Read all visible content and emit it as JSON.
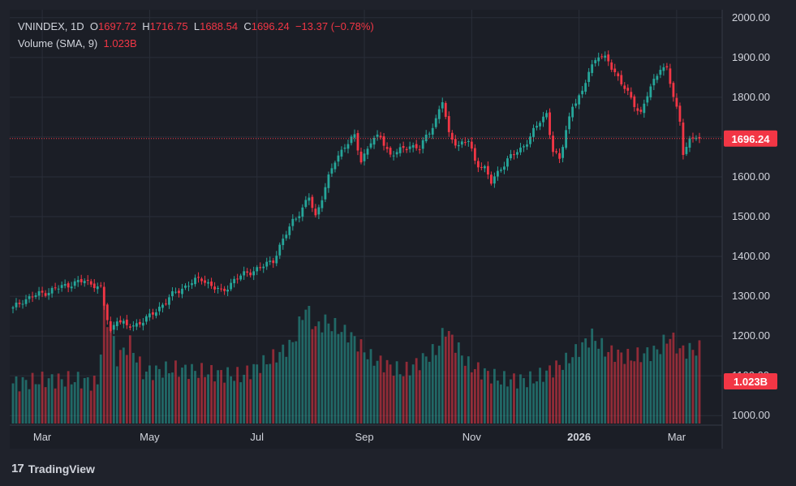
{
  "legend": {
    "symbol": "VNINDEX, 1D",
    "o_label": "O",
    "o_value": "1697.72",
    "h_label": "H",
    "h_value": "1716.75",
    "l_label": "L",
    "l_value": "1688.54",
    "c_label": "C",
    "c_value": "1696.24",
    "change": "−13.37 (−0.78%)",
    "vol_label": "Volume (SMA, 9)",
    "vol_value": "1.023B"
  },
  "brand": {
    "logo": "17",
    "name": "TradingView"
  },
  "colors": {
    "up": "#26a69a",
    "down": "#f23645",
    "background": "#1f222b",
    "grid": "#2a2e39",
    "text": "#d1d4dc"
  },
  "chart_data": {
    "type": "candlestick",
    "symbol": "VNINDEX",
    "interval": "1D",
    "y_axis": {
      "ticks": [
        1000,
        1100,
        1200,
        1300,
        1400,
        1500,
        1600,
        1700,
        1800,
        1900,
        2000
      ],
      "tick_labels": [
        "1000.00",
        "1100.00",
        "1200.00",
        "1300.00",
        "1400.00",
        "1500.00",
        "1600.00",
        "1700.00",
        "1800.00",
        "1900.00",
        "2000.00"
      ],
      "range": [
        980,
        2020
      ]
    },
    "x_axis": {
      "labels": [
        "Mar",
        "May",
        "Jul",
        "Sep",
        "Nov",
        "2026",
        "Mar"
      ],
      "bold_label": "2026"
    },
    "last_price": 1696.24,
    "last_price_label": "1696.24",
    "last_volume_label": "1.023B",
    "grid": true,
    "keypoints": [
      {
        "i": 0,
        "c": 1268
      },
      {
        "i": 3,
        "c": 1290
      },
      {
        "i": 8,
        "c": 1305
      },
      {
        "i": 13,
        "c": 1318
      },
      {
        "i": 18,
        "c": 1332
      },
      {
        "i": 22,
        "c": 1338
      },
      {
        "i": 25,
        "c": 1330
      },
      {
        "i": 27,
        "c": 1318
      },
      {
        "i": 28,
        "c": 1275
      },
      {
        "i": 30,
        "c": 1210
      },
      {
        "i": 32,
        "c": 1245
      },
      {
        "i": 35,
        "c": 1222
      },
      {
        "i": 38,
        "c": 1230
      },
      {
        "i": 42,
        "c": 1248
      },
      {
        "i": 46,
        "c": 1280
      },
      {
        "i": 50,
        "c": 1310
      },
      {
        "i": 54,
        "c": 1330
      },
      {
        "i": 58,
        "c": 1345
      },
      {
        "i": 62,
        "c": 1320
      },
      {
        "i": 64,
        "c": 1310
      },
      {
        "i": 68,
        "c": 1340
      },
      {
        "i": 72,
        "c": 1360
      },
      {
        "i": 76,
        "c": 1370
      },
      {
        "i": 80,
        "c": 1392
      },
      {
        "i": 83,
        "c": 1440
      },
      {
        "i": 86,
        "c": 1490
      },
      {
        "i": 89,
        "c": 1520
      },
      {
        "i": 91,
        "c": 1548
      },
      {
        "i": 93,
        "c": 1500
      },
      {
        "i": 96,
        "c": 1575
      },
      {
        "i": 99,
        "c": 1640
      },
      {
        "i": 102,
        "c": 1680
      },
      {
        "i": 105,
        "c": 1700
      },
      {
        "i": 107,
        "c": 1640
      },
      {
        "i": 110,
        "c": 1690
      },
      {
        "i": 113,
        "c": 1700
      },
      {
        "i": 116,
        "c": 1655
      },
      {
        "i": 119,
        "c": 1665
      },
      {
        "i": 122,
        "c": 1680
      },
      {
        "i": 125,
        "c": 1670
      },
      {
        "i": 127,
        "c": 1700
      },
      {
        "i": 130,
        "c": 1745
      },
      {
        "i": 132,
        "c": 1790
      },
      {
        "i": 134,
        "c": 1705
      },
      {
        "i": 137,
        "c": 1680
      },
      {
        "i": 140,
        "c": 1690
      },
      {
        "i": 142,
        "c": 1640
      },
      {
        "i": 145,
        "c": 1620
      },
      {
        "i": 147,
        "c": 1585
      },
      {
        "i": 150,
        "c": 1625
      },
      {
        "i": 153,
        "c": 1650
      },
      {
        "i": 156,
        "c": 1670
      },
      {
        "i": 159,
        "c": 1700
      },
      {
        "i": 162,
        "c": 1740
      },
      {
        "i": 164,
        "c": 1760
      },
      {
        "i": 166,
        "c": 1665
      },
      {
        "i": 168,
        "c": 1640
      },
      {
        "i": 170,
        "c": 1720
      },
      {
        "i": 172,
        "c": 1780
      },
      {
        "i": 175,
        "c": 1808
      },
      {
        "i": 177,
        "c": 1870
      },
      {
        "i": 180,
        "c": 1905
      },
      {
        "i": 183,
        "c": 1890
      },
      {
        "i": 185,
        "c": 1865
      },
      {
        "i": 187,
        "c": 1835
      },
      {
        "i": 190,
        "c": 1795
      },
      {
        "i": 193,
        "c": 1760
      },
      {
        "i": 195,
        "c": 1805
      },
      {
        "i": 197,
        "c": 1840
      },
      {
        "i": 199,
        "c": 1878
      },
      {
        "i": 201,
        "c": 1870
      },
      {
        "i": 203,
        "c": 1800
      },
      {
        "i": 205,
        "c": 1740
      },
      {
        "i": 206,
        "c": 1665
      },
      {
        "i": 208,
        "c": 1690
      },
      {
        "i": 210,
        "c": 1700
      },
      {
        "i": 211,
        "c": 1696
      }
    ],
    "volume_keypoints": [
      {
        "i": 0,
        "v": 0.55
      },
      {
        "i": 10,
        "v": 0.6
      },
      {
        "i": 20,
        "v": 0.6
      },
      {
        "i": 26,
        "v": 0.55
      },
      {
        "i": 28,
        "v": 1.5
      },
      {
        "i": 30,
        "v": 1.3
      },
      {
        "i": 32,
        "v": 0.9
      },
      {
        "i": 36,
        "v": 1.1
      },
      {
        "i": 40,
        "v": 0.7
      },
      {
        "i": 50,
        "v": 0.75
      },
      {
        "i": 60,
        "v": 0.7
      },
      {
        "i": 70,
        "v": 0.65
      },
      {
        "i": 80,
        "v": 0.9
      },
      {
        "i": 86,
        "v": 1.1
      },
      {
        "i": 90,
        "v": 1.6
      },
      {
        "i": 93,
        "v": 1.3
      },
      {
        "i": 96,
        "v": 1.4
      },
      {
        "i": 100,
        "v": 1.3
      },
      {
        "i": 104,
        "v": 1.2
      },
      {
        "i": 110,
        "v": 0.9
      },
      {
        "i": 120,
        "v": 0.7
      },
      {
        "i": 130,
        "v": 1.0
      },
      {
        "i": 133,
        "v": 1.3
      },
      {
        "i": 140,
        "v": 0.8
      },
      {
        "i": 150,
        "v": 0.6
      },
      {
        "i": 160,
        "v": 0.6
      },
      {
        "i": 170,
        "v": 0.85
      },
      {
        "i": 178,
        "v": 1.2
      },
      {
        "i": 182,
        "v": 1.0
      },
      {
        "i": 190,
        "v": 0.9
      },
      {
        "i": 198,
        "v": 1.0
      },
      {
        "i": 202,
        "v": 1.2
      },
      {
        "i": 205,
        "v": 1.0
      },
      {
        "i": 211,
        "v": 1.02
      }
    ],
    "n_candles": 212
  }
}
